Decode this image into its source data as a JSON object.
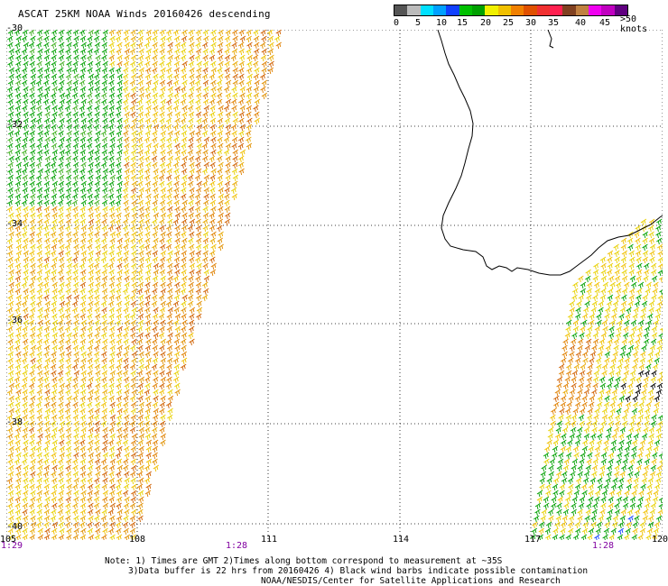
{
  "title": "ASCAT 25KM NOAA Winds 20160426 descending",
  "legend": {
    "colors": [
      "#555555",
      "#bbbbbb",
      "#00e0ff",
      "#00a0ff",
      "#1040ff",
      "#00c000",
      "#00a000",
      "#f0f000",
      "#f0c000",
      "#f08000",
      "#e05000",
      "#f03030",
      "#ff2050",
      "#804020",
      "#c08040",
      "#f000f0",
      "#c000c0",
      "#600080"
    ],
    "labels": [
      "0",
      "5",
      "10",
      "15",
      "20",
      "25",
      "30",
      "35",
      "40",
      "45"
    ],
    "units": ">50 knots"
  },
  "axes": {
    "y_ticks": [
      "-30",
      "-32",
      "-34",
      "-36",
      "-38",
      "-40"
    ],
    "x_ticks": [
      "105",
      "108",
      "111",
      "114",
      "117",
      "120"
    ]
  },
  "time_labels": [
    "1:29",
    "1:28",
    "1:28"
  ],
  "notes": [
    "Note: 1) Times are GMT 2)Times along bottom correspond to measurement at ~35S",
    "3)Data buffer is 22 hrs from 20160426 4) Black wind barbs indicate possible contamination",
    "NOAA/NESDIS/Center for Satellite Applications and Research"
  ]
}
